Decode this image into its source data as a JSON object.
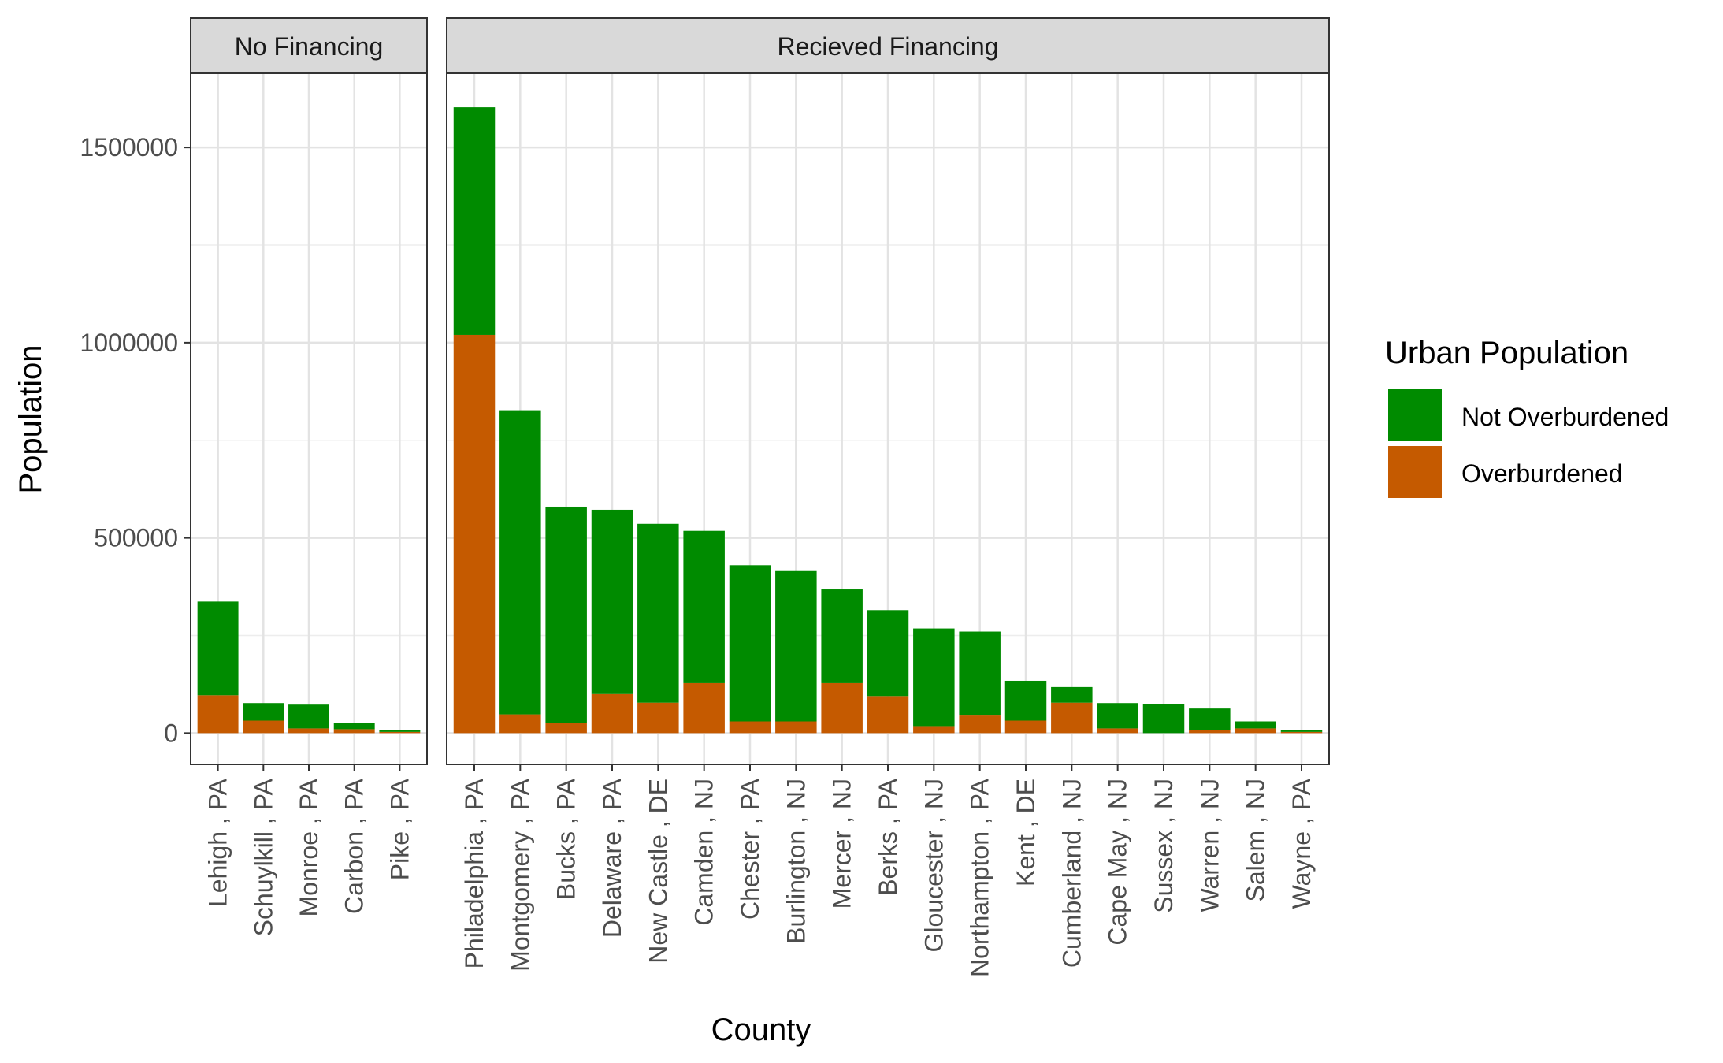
{
  "chart_data": {
    "type": "bar",
    "stacked": true,
    "xlabel": "County",
    "ylabel": "Population",
    "ylim": [
      -80000,
      1690000
    ],
    "y_ticks": [
      0,
      500000,
      1000000,
      1500000
    ],
    "y_tick_labels": [
      "0",
      "500000",
      "1000000",
      "1500000"
    ],
    "grid": true,
    "legend": {
      "title": "Urban Population",
      "placement": "right",
      "entries": [
        {
          "name": "Not Overburdened",
          "color": "#008B00"
        },
        {
          "name": "Overburdened",
          "color": "#C55A00"
        }
      ]
    },
    "panels": [
      {
        "title": "No Financing",
        "categories": [
          "Lehigh , PA",
          "Schuylkill , PA",
          "Monroe , PA",
          "Carbon , PA",
          "Pike , PA"
        ],
        "series": [
          {
            "name": "Overburdened",
            "values": [
              97000,
              32000,
              12000,
              10000,
              3000
            ]
          },
          {
            "name": "Not Overburdened",
            "values": [
              240000,
              45000,
              61000,
              15000,
              4000
            ]
          }
        ]
      },
      {
        "title": "Recieved Financing",
        "categories": [
          "Philadelphia , PA",
          "Montgomery , PA",
          "Bucks , PA",
          "Delaware , PA",
          "New Castle , DE",
          "Camden , NJ",
          "Chester , PA",
          "Burlington , NJ",
          "Mercer , NJ",
          "Berks , PA",
          "Gloucester , NJ",
          "Northampton , PA",
          "Kent , DE",
          "Cumberland , NJ",
          "Cape May , NJ",
          "Sussex , NJ",
          "Warren , NJ",
          "Salem , NJ",
          "Wayne , PA"
        ],
        "series": [
          {
            "name": "Overburdened",
            "values": [
              1020000,
              48000,
              25000,
              100000,
              78000,
              128000,
              30000,
              30000,
              128000,
              95000,
              18000,
              45000,
              32000,
              78000,
              12000,
              0,
              8000,
              12000,
              3000
            ]
          },
          {
            "name": "Not Overburdened",
            "values": [
              583000,
              779000,
              555000,
              472000,
              458000,
              390000,
              400000,
              387000,
              240000,
              220000,
              250000,
              215000,
              102000,
              40000,
              65000,
              75000,
              55000,
              18000,
              5000
            ]
          }
        ]
      }
    ]
  }
}
